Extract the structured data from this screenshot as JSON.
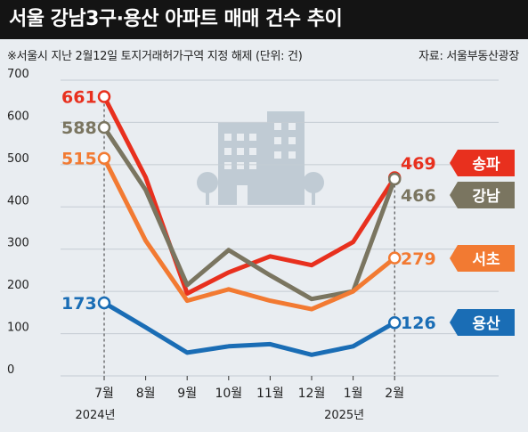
{
  "header": {
    "title": "서울 강남3구·용산 아파트 매매 건수 추이",
    "subtitle": "※서울시 지난 2월12일 토지거래허가구역 지정 해제 (단위: 건)",
    "source": "자료: 서울부동산광장"
  },
  "chart_data": {
    "type": "line",
    "categories": [
      "7월",
      "8월",
      "9월",
      "10월",
      "11월",
      "12월",
      "1월",
      "2월"
    ],
    "year_labels": [
      {
        "category_index": 0,
        "label": "2024년"
      },
      {
        "category_index": 6,
        "label": "2025년"
      }
    ],
    "ylim": [
      0,
      700
    ],
    "yticks": [
      "0",
      "100",
      "200",
      "300",
      "400",
      "500",
      "600",
      "700"
    ],
    "series": [
      {
        "name": "송파",
        "color": "#e8301e",
        "values": [
          661,
          470,
          195,
          245,
          283,
          262,
          317,
          469
        ],
        "start_label": "661",
        "end_label": "469"
      },
      {
        "name": "강남",
        "color": "#7a7560",
        "values": [
          588,
          440,
          215,
          298,
          238,
          182,
          200,
          466
        ],
        "start_label": "588",
        "end_label": "466"
      },
      {
        "name": "서초",
        "color": "#f27a32",
        "values": [
          515,
          320,
          178,
          205,
          178,
          158,
          200,
          279
        ],
        "start_label": "515",
        "end_label": "279"
      },
      {
        "name": "용산",
        "color": "#1a6db5",
        "values": [
          173,
          115,
          55,
          70,
          75,
          50,
          70,
          126
        ],
        "start_label": "173",
        "end_label": "126"
      }
    ]
  }
}
